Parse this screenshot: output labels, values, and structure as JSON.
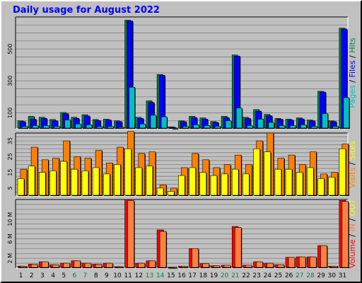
{
  "title": "Daily usage for August 2022",
  "colors": {
    "pages": "#00c0c0",
    "files": "#0000ff",
    "hits": "#008040",
    "visits": "#ff8000",
    "sites": "#ffff00",
    "kin": "#ff8040",
    "kout": "#ffff00",
    "volume": "#ff0000",
    "weekend_day": "#008040",
    "normal_day": "#000000",
    "plot_bg": "#c0c0c0",
    "grid": "#808080"
  },
  "chart_data": [
    {
      "type": "bar",
      "panel": "top",
      "categories": [
        "1",
        "2",
        "3",
        "4",
        "5",
        "6",
        "7",
        "8",
        "9",
        "10",
        "11",
        "12",
        "13",
        "14",
        "15",
        "16",
        "17",
        "18",
        "19",
        "20",
        "21",
        "22",
        "23",
        "24",
        "25",
        "26",
        "27",
        "28",
        "29",
        "30",
        "31"
      ],
      "weekend_days": [
        "6",
        "7",
        "13",
        "14",
        "20",
        "21",
        "27",
        "28"
      ],
      "ylim": [
        0,
        700
      ],
      "ticks": [
        "100",
        "300",
        "500"
      ],
      "ylabel_parts": [
        {
          "text": "Pages",
          "color": "#00c0c0"
        },
        {
          "text": " / ",
          "color": "#000000"
        },
        {
          "text": "Files",
          "color": "#0000ff"
        },
        {
          "text": " / ",
          "color": "#000000"
        },
        {
          "text": "Hits",
          "color": "#008040"
        }
      ],
      "series": [
        {
          "name": "Hits",
          "values": [
            50,
            78,
            72,
            58,
            102,
            72,
            88,
            58,
            60,
            50,
            680,
            72,
            175,
            340,
            12,
            50,
            78,
            68,
            45,
            78,
            462,
            72,
            120,
            90,
            65,
            60,
            68,
            55,
            235,
            50,
            630
          ]
        },
        {
          "name": "Files",
          "values": [
            45,
            60,
            65,
            50,
            95,
            65,
            80,
            52,
            55,
            45,
            675,
            65,
            165,
            335,
            10,
            45,
            70,
            60,
            40,
            70,
            455,
            65,
            110,
            82,
            60,
            55,
            62,
            50,
            230,
            45,
            625
          ]
        },
        {
          "name": "Pages",
          "values": [
            15,
            20,
            20,
            15,
            55,
            30,
            25,
            15,
            15,
            10,
            260,
            30,
            85,
            75,
            5,
            15,
            25,
            20,
            15,
            50,
            130,
            20,
            60,
            40,
            20,
            20,
            25,
            15,
            95,
            15,
            195
          ]
        }
      ]
    },
    {
      "type": "bar",
      "panel": "middle",
      "categories": [
        "1",
        "2",
        "3",
        "4",
        "5",
        "6",
        "7",
        "8",
        "9",
        "10",
        "11",
        "12",
        "13",
        "14",
        "15",
        "16",
        "17",
        "18",
        "19",
        "20",
        "21",
        "22",
        "23",
        "24",
        "25",
        "26",
        "27",
        "28",
        "29",
        "30",
        "31"
      ],
      "ylim": [
        0,
        40
      ],
      "ticks": [
        "5",
        "15",
        "25",
        "35"
      ],
      "ylabel_parts": [
        {
          "text": "Visits",
          "color": "#ff8000"
        },
        {
          "text": " / ",
          "color": "#000000"
        },
        {
          "text": "Sites",
          "color": "#ffff00"
        }
      ],
      "series": [
        {
          "name": "Visits",
          "values": [
            17,
            31,
            23,
            24,
            35,
            25,
            24,
            29,
            21,
            31,
            41,
            27,
            28,
            7,
            5,
            18,
            27,
            23,
            18,
            20,
            26,
            20,
            35,
            40,
            24,
            26,
            20,
            28,
            14,
            15,
            33
          ]
        },
        {
          "name": "Sites",
          "values": [
            11,
            19,
            15,
            16,
            22,
            17,
            16,
            18,
            14,
            20,
            30,
            18,
            19,
            5,
            3,
            13,
            18,
            15,
            13,
            14,
            17,
            14,
            30,
            28,
            17,
            17,
            15,
            18,
            11,
            12,
            30
          ]
        }
      ]
    },
    {
      "type": "bar",
      "panel": "bottom",
      "categories": [
        "1",
        "2",
        "3",
        "4",
        "5",
        "6",
        "7",
        "8",
        "9",
        "10",
        "11",
        "12",
        "13",
        "14",
        "15",
        "16",
        "17",
        "18",
        "19",
        "20",
        "21",
        "22",
        "23",
        "24",
        "25",
        "26",
        "27",
        "28",
        "29",
        "30",
        "31"
      ],
      "ylim": [
        0,
        14
      ],
      "ticks": [
        "2 M",
        "6 M",
        "10 M"
      ],
      "ylabel_parts": [
        {
          "text": "Volume",
          "color": "#ff0000"
        },
        {
          "text": " / ",
          "color": "#000000"
        },
        {
          "text": "IN",
          "color": "#ff8040"
        },
        {
          "text": " / ",
          "color": "#000000"
        },
        {
          "text": "OUT",
          "color": "#ffff00"
        }
      ],
      "series": [
        {
          "name": "Volume",
          "values": [
            0.4,
            0.8,
            1.3,
            0.7,
            1.0,
            1.5,
            1.0,
            0.8,
            1.0,
            0.3,
            14.0,
            1.0,
            1.5,
            7.8,
            0.2,
            0.4,
            4.0,
            0.9,
            0.5,
            0.6,
            8.5,
            0.6,
            1.3,
            1.0,
            0.7,
            2.2,
            2.3,
            2.3,
            4.6,
            0.4,
            13.8
          ]
        },
        {
          "name": "IN",
          "values": [
            0.4,
            0.8,
            1.3,
            0.7,
            1.0,
            1.5,
            1.0,
            0.8,
            1.0,
            0.3,
            13.8,
            1.0,
            1.5,
            7.5,
            0.2,
            0.4,
            4.0,
            0.9,
            0.5,
            0.6,
            8.3,
            0.6,
            1.3,
            1.0,
            0.7,
            2.2,
            2.3,
            2.3,
            4.6,
            0.4,
            13.6
          ]
        }
      ]
    }
  ]
}
